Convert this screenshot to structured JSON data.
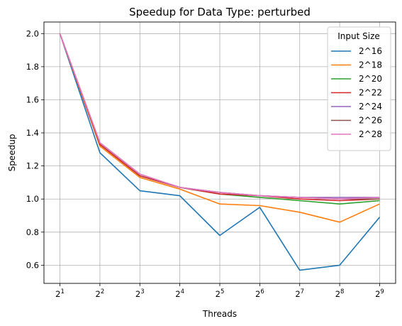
{
  "chart_data": {
    "type": "line",
    "title": "Speedup for Data Type: perturbed",
    "xlabel": "Threads",
    "ylabel": "Speedup",
    "x_tick_labels": [
      {
        "base": "2",
        "exp": "1"
      },
      {
        "base": "2",
        "exp": "2"
      },
      {
        "base": "2",
        "exp": "3"
      },
      {
        "base": "2",
        "exp": "4"
      },
      {
        "base": "2",
        "exp": "5"
      },
      {
        "base": "2",
        "exp": "6"
      },
      {
        "base": "2",
        "exp": "7"
      },
      {
        "base": "2",
        "exp": "8"
      },
      {
        "base": "2",
        "exp": "9"
      }
    ],
    "x": [
      2,
      4,
      8,
      16,
      32,
      64,
      128,
      256,
      512
    ],
    "x_scale": "log2",
    "ylim": [
      0.49,
      2.07
    ],
    "y_ticks": [
      0.6,
      0.8,
      1.0,
      1.2,
      1.4,
      1.6,
      1.8,
      2.0
    ],
    "y_tick_labels": [
      "0.6",
      "0.8",
      "1.0",
      "1.2",
      "1.4",
      "1.6",
      "1.8",
      "2.0"
    ],
    "grid": true,
    "legend": {
      "title": "Input Size",
      "placement": "top-right"
    },
    "series": [
      {
        "name": "2^16",
        "color": "#1f77b4",
        "values": [
          2.0,
          1.28,
          1.05,
          1.02,
          0.78,
          0.95,
          0.57,
          0.6,
          0.89
        ]
      },
      {
        "name": "2^18",
        "color": "#ff7f0e",
        "values": [
          2.0,
          1.32,
          1.13,
          1.06,
          0.97,
          0.96,
          0.92,
          0.86,
          0.97
        ]
      },
      {
        "name": "2^20",
        "color": "#2ca02c",
        "values": [
          2.0,
          1.33,
          1.14,
          1.07,
          1.03,
          1.01,
          0.99,
          0.97,
          0.99
        ]
      },
      {
        "name": "2^22",
        "color": "#d62728",
        "values": [
          2.0,
          1.33,
          1.14,
          1.07,
          1.03,
          1.02,
          1.0,
          0.99,
          1.0
        ]
      },
      {
        "name": "2^24",
        "color": "#9467bd",
        "values": [
          2.0,
          1.34,
          1.15,
          1.07,
          1.04,
          1.02,
          1.01,
          1.01,
          1.01
        ]
      },
      {
        "name": "2^26",
        "color": "#8c564b",
        "values": [
          2.0,
          1.34,
          1.15,
          1.07,
          1.04,
          1.02,
          1.01,
          1.0,
          1.0
        ]
      },
      {
        "name": "2^28",
        "color": "#e377c2",
        "values": [
          2.0,
          1.34,
          1.15,
          1.07,
          1.04,
          1.02,
          1.01,
          1.0,
          1.01
        ]
      }
    ]
  }
}
